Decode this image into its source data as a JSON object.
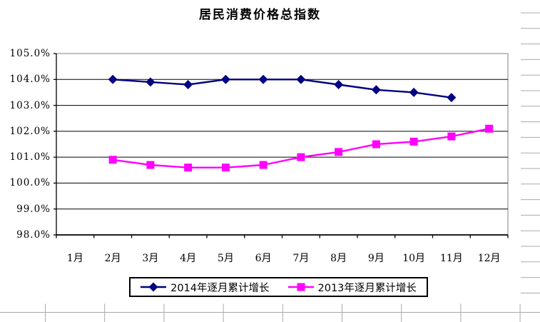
{
  "chart_data": {
    "type": "line",
    "title": "居民消费价格总指数",
    "categories": [
      "1月",
      "2月",
      "3月",
      "4月",
      "5月",
      "6月",
      "7月",
      "8月",
      "9月",
      "10月",
      "11月",
      "12月"
    ],
    "y_ticks": [
      "105.0%",
      "104.0%",
      "103.0%",
      "102.0%",
      "101.0%",
      "100.0%",
      "99.0%",
      "98.0%"
    ],
    "ylim": [
      98.0,
      105.0
    ],
    "y_step": 1.0,
    "grid": true,
    "legend_position": "bottom",
    "series": [
      {
        "name": "2014年逐月累计增长",
        "color": "#000080",
        "marker": "diamond",
        "values": [
          null,
          104.0,
          103.9,
          103.8,
          104.0,
          104.0,
          104.0,
          103.8,
          103.6,
          103.5,
          103.3,
          null
        ]
      },
      {
        "name": "2013年逐月累计增长",
        "color": "#FF00FF",
        "marker": "square",
        "values": [
          null,
          100.9,
          100.7,
          100.6,
          100.6,
          100.7,
          101.0,
          101.2,
          101.5,
          101.6,
          101.8,
          102.1
        ]
      }
    ]
  },
  "colors": {
    "plot_border": "#808080",
    "gridline": "#000000",
    "axis": "#000000",
    "worksheet_gridline": "#aaaaaa",
    "background": "#ffffff"
  }
}
